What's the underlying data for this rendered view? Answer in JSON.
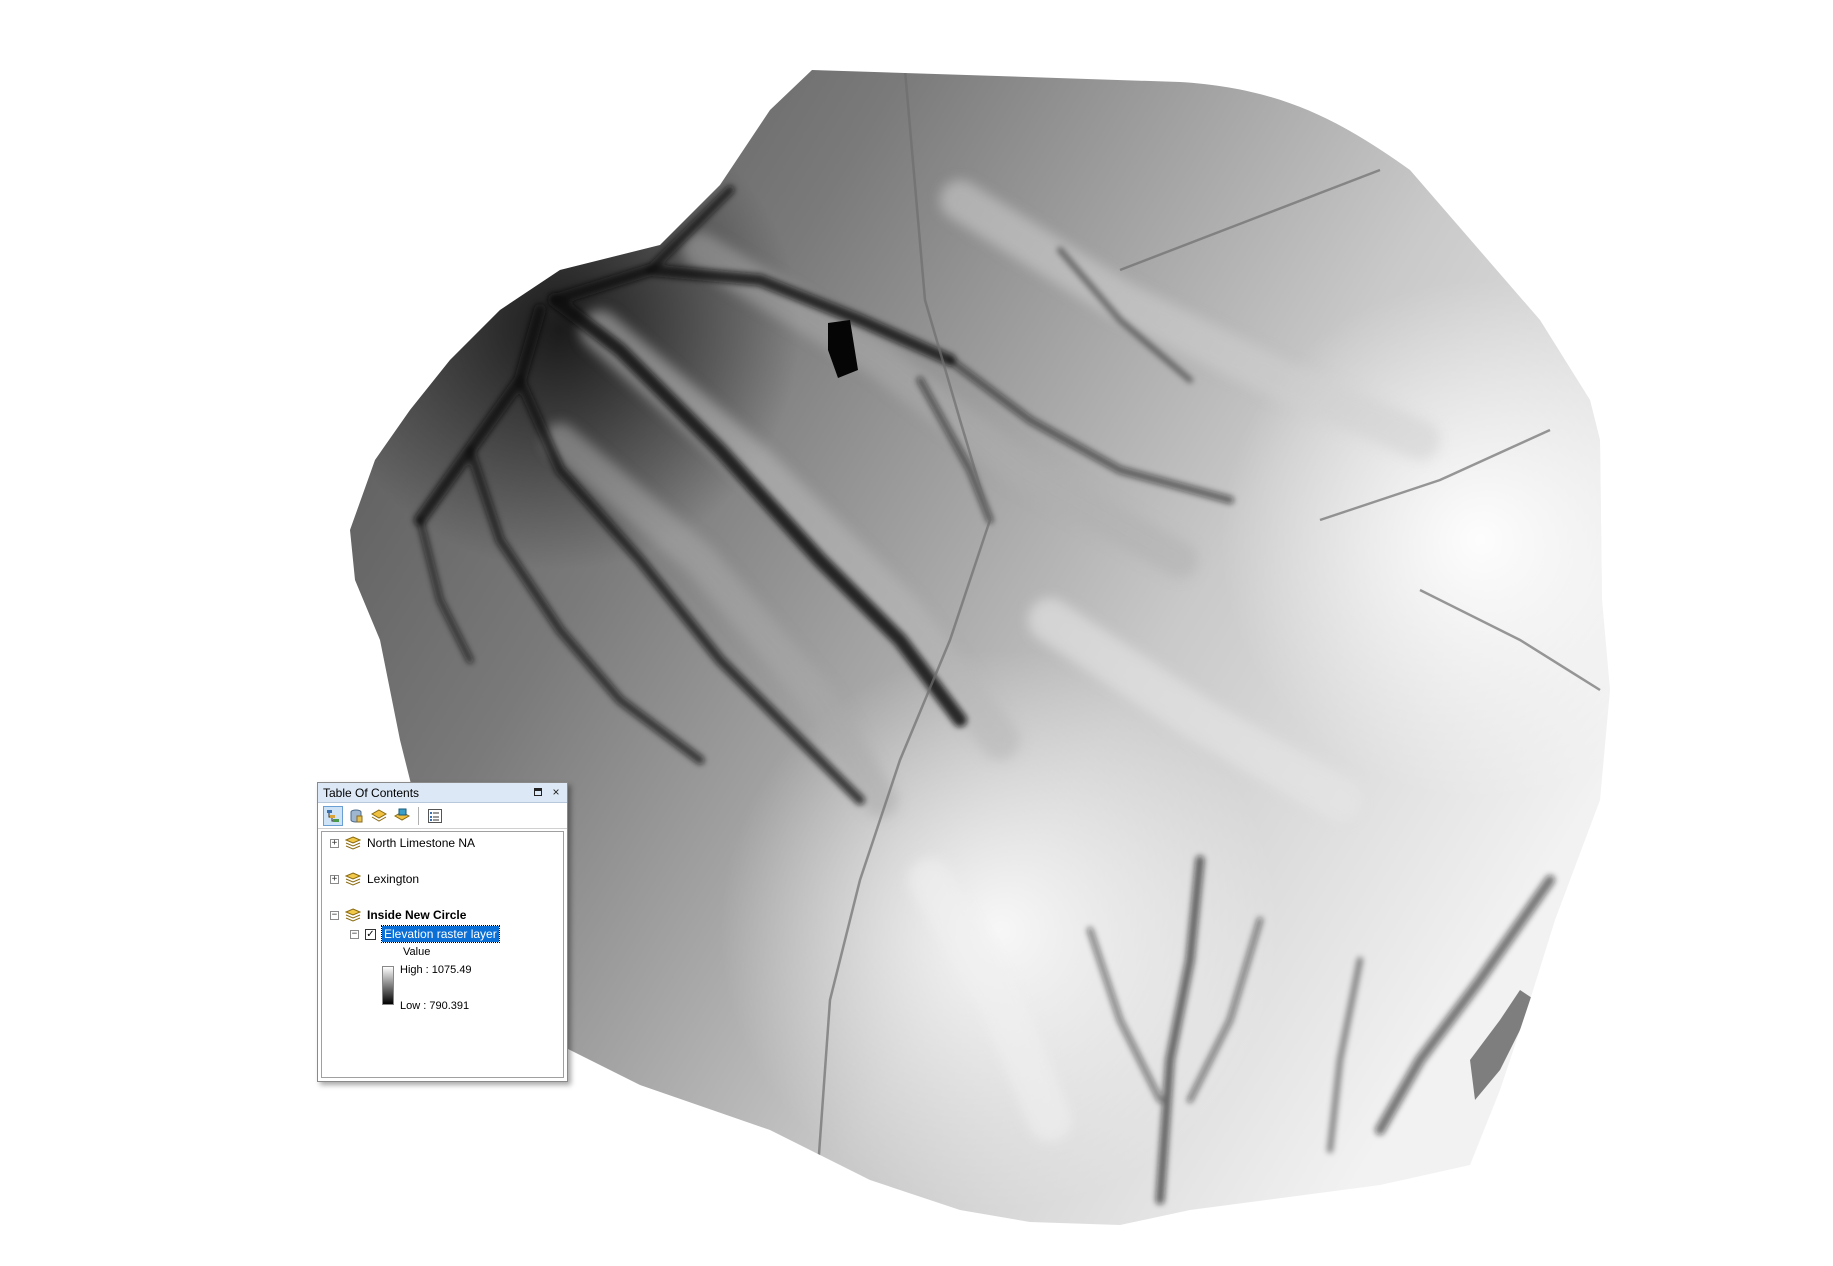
{
  "map": {
    "layer": "Elevation raster layer",
    "colors": {
      "background": "#ffffff",
      "low": "#000000",
      "high": "#ffffff"
    }
  },
  "toc": {
    "title": "Table Of Contents",
    "buttons": {
      "restore": "restore-icon",
      "close": "×"
    },
    "toolbar": [
      {
        "icon": "list-by-drawing-order-icon",
        "active": true
      },
      {
        "icon": "list-by-source-icon",
        "active": false
      },
      {
        "icon": "list-by-visibility-icon",
        "active": false
      },
      {
        "icon": "list-by-selection-icon",
        "active": false
      },
      {
        "icon": "options-icon",
        "active": false
      }
    ],
    "groups": [
      {
        "label": "North Limestone NA",
        "expanded": false
      },
      {
        "label": "Lexington",
        "expanded": false
      },
      {
        "label": "Inside New Circle",
        "expanded": true
      }
    ],
    "layer": {
      "label": "Elevation raster layer",
      "checked": true,
      "expanded": true
    },
    "legend": {
      "field": "Value",
      "high": "High : 1075.49",
      "low": "Low : 790.391"
    },
    "expander_collapsed": "+",
    "expander_expanded": "−",
    "check_mark": "✓"
  }
}
